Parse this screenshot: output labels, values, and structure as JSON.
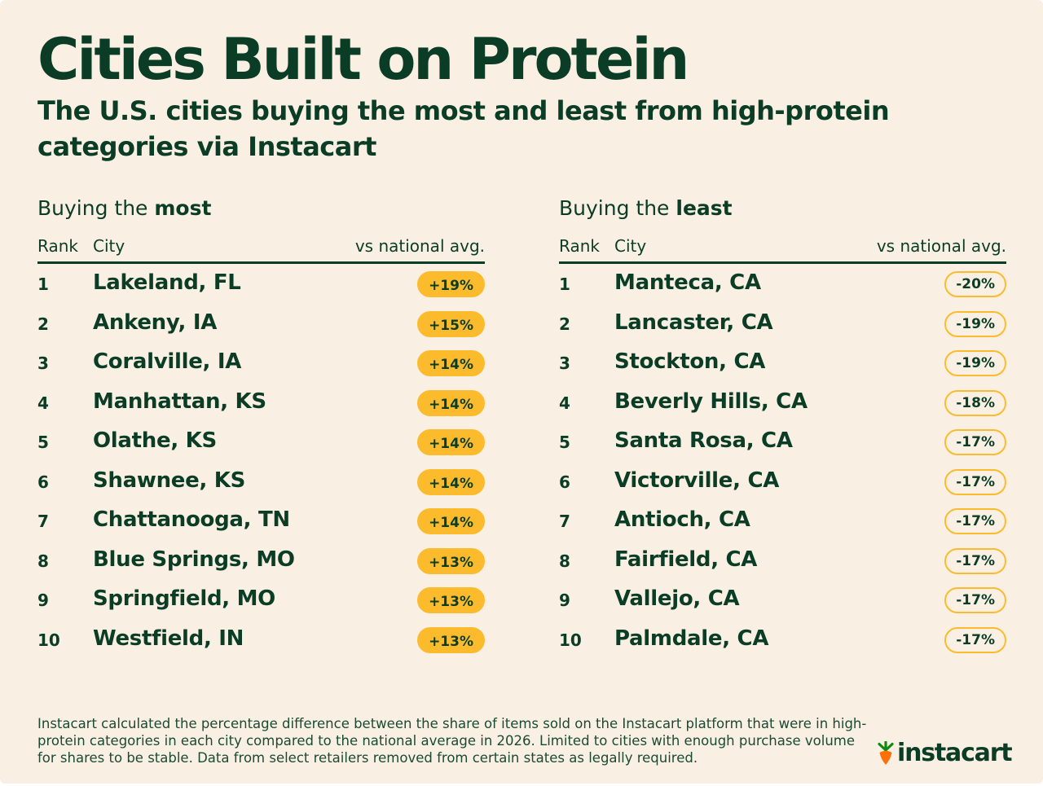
{
  "title": "Cities Built on Protein",
  "subtitle": "The U.S. cities buying the most and least from high-protein categories via Instacart",
  "most": {
    "heading_prefix": "Buying the ",
    "heading_emph": "most",
    "col_rank": "Rank",
    "col_city": "City",
    "col_vs": "vs national avg."
  },
  "least": {
    "heading_prefix": "Buying the ",
    "heading_emph": "least",
    "col_rank": "Rank",
    "col_city": "City",
    "col_vs": "vs national avg."
  },
  "chart_data": {
    "type": "table",
    "title": "Cities Built on Protein",
    "tables": [
      {
        "name": "Buying the most",
        "columns": [
          "Rank",
          "City",
          "vs national avg."
        ],
        "rows": [
          [
            "1",
            "Lakeland, FL",
            "+19%"
          ],
          [
            "2",
            "Ankeny, IA",
            "+15%"
          ],
          [
            "3",
            "Coralville, IA",
            "+14%"
          ],
          [
            "4",
            "Manhattan, KS",
            "+14%"
          ],
          [
            "5",
            "Olathe, KS",
            "+14%"
          ],
          [
            "6",
            "Shawnee, KS",
            "+14%"
          ],
          [
            "7",
            "Chattanooga, TN",
            "+14%"
          ],
          [
            "8",
            "Blue Springs, MO",
            "+13%"
          ],
          [
            "9",
            "Springfield, MO",
            "+13%"
          ],
          [
            "10",
            "Westfield, IN",
            "+13%"
          ]
        ]
      },
      {
        "name": "Buying the least",
        "columns": [
          "Rank",
          "City",
          "vs national avg."
        ],
        "rows": [
          [
            "1",
            "Manteca, CA",
            "-20%"
          ],
          [
            "2",
            "Lancaster, CA",
            "-19%"
          ],
          [
            "3",
            "Stockton, CA",
            "-19%"
          ],
          [
            "4",
            "Beverly Hills, CA",
            "-18%"
          ],
          [
            "5",
            "Santa Rosa, CA",
            "-17%"
          ],
          [
            "6",
            "Victorville, CA",
            "-17%"
          ],
          [
            "7",
            "Antioch, CA",
            "-17%"
          ],
          [
            "8",
            "Fairfield, CA",
            "-17%"
          ],
          [
            "9",
            "Vallejo, CA",
            "-17%"
          ],
          [
            "10",
            "Palmdale, CA",
            "-17%"
          ]
        ]
      }
    ]
  },
  "footnote": "Instacart calculated the percentage difference between the share of items sold on the Instacart platform that were in high-protein categories in each city compared to the national average in 2026. Limited to cities with enough purchase volume for shares to be stable. Data from select retailers removed from certain states as legally required.",
  "logo": {
    "text": "instacart",
    "icon": "carrot-icon"
  },
  "colors": {
    "background": "#f9f0e3",
    "text": "#0b3d26",
    "pill": "#fcbb2c",
    "carrot_orange": "#ff7009",
    "carrot_green": "#108910"
  }
}
